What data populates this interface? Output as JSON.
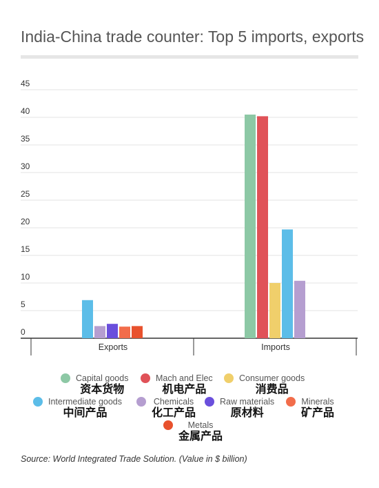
{
  "title": "India-China trade counter: Top 5 imports, exports",
  "source": "Source: World Integrated Trade Solution. (Value in $ billion)",
  "chart_data": {
    "type": "bar",
    "categories": [
      "Exports",
      "Imports"
    ],
    "ylim": [
      0,
      45
    ],
    "yticks": [
      0,
      5,
      10,
      15,
      20,
      25,
      30,
      35,
      40,
      45
    ],
    "grid": true,
    "legend_position": "bottom",
    "series": [
      {
        "name": "Capital goods",
        "name_cn": "资本货物",
        "color": "#8dc8a5",
        "values": [
          null,
          40.5
        ]
      },
      {
        "name": "Mach and Elec",
        "name_cn": "机电产品",
        "color": "#e05258",
        "values": [
          null,
          40.2
        ]
      },
      {
        "name": "Consumer goods",
        "name_cn": "消费品",
        "color": "#f0cf6b",
        "values": [
          null,
          10.0
        ]
      },
      {
        "name": "Intermediate goods",
        "name_cn": "中间产品",
        "color": "#5cbde8",
        "values": [
          6.9,
          19.7
        ]
      },
      {
        "name": "Chemicals",
        "name_cn": "化工产品",
        "color": "#b59ed0",
        "values": [
          2.2,
          10.4
        ]
      },
      {
        "name": "Raw materials",
        "name_cn": "原材料",
        "color": "#6a4fdc",
        "values": [
          2.6,
          null
        ]
      },
      {
        "name": "Minerals",
        "name_cn": "矿产品",
        "color": "#f26d4b",
        "values": [
          2.1,
          null
        ]
      },
      {
        "name": "Metals",
        "name_cn": "金属产品",
        "color": "#e8512d",
        "values": [
          2.2,
          null
        ]
      }
    ]
  }
}
